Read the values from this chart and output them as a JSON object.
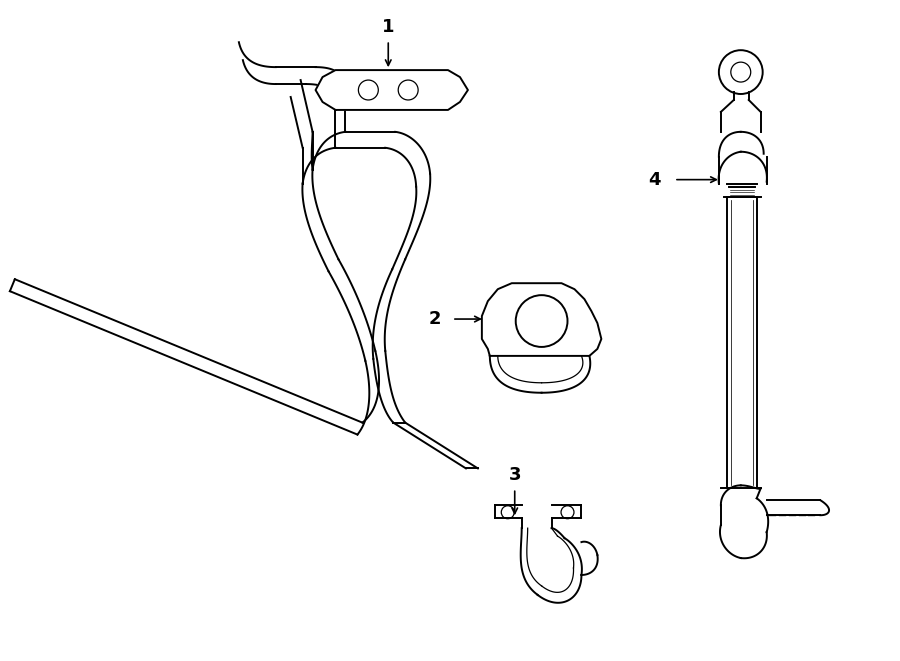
{
  "bg_color": "#ffffff",
  "line_color": "#000000",
  "lw": 1.4,
  "lw_thin": 0.9,
  "fig_width": 9.0,
  "fig_height": 6.61
}
